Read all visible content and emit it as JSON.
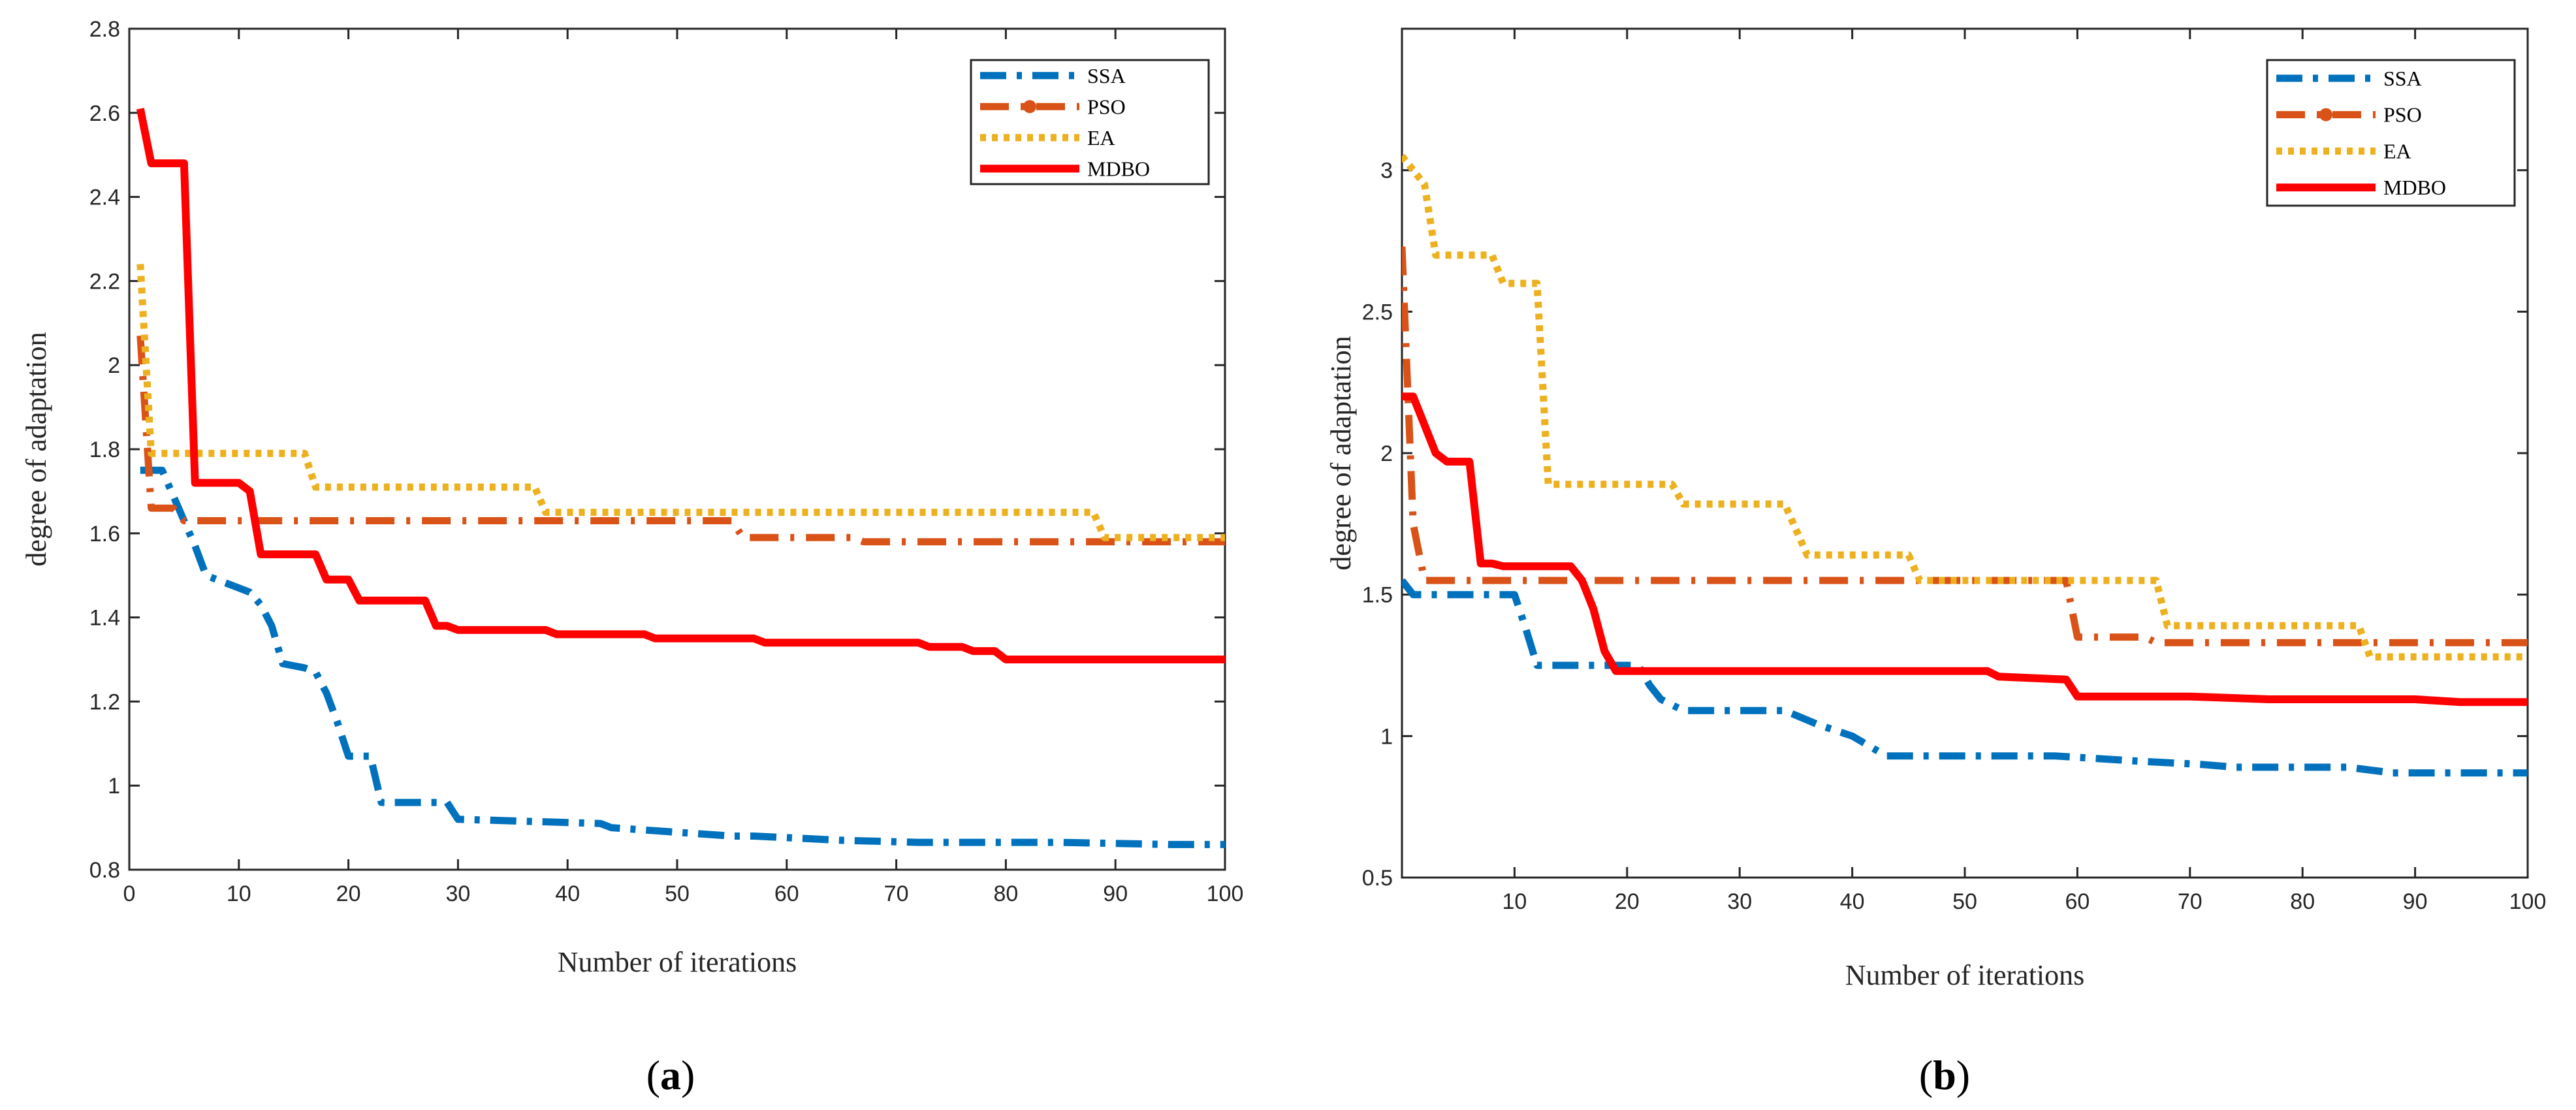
{
  "chart_data": [
    {
      "type": "line",
      "caption": "a",
      "title": "",
      "xlabel": "Number of iterations",
      "ylabel": "degree of adaptation",
      "xlim": [
        0,
        100
      ],
      "ylim": [
        0.8,
        2.8
      ],
      "xticks": [
        0,
        10,
        20,
        30,
        40,
        50,
        60,
        70,
        80,
        90,
        100
      ],
      "yticks": [
        0.8,
        1,
        1.2,
        1.4,
        1.6,
        1.8,
        2,
        2.2,
        2.4,
        2.6,
        2.8
      ],
      "xtick_labels": [
        "0",
        "10",
        "20",
        "30",
        "40",
        "50",
        "60",
        "70",
        "80",
        "90",
        "100"
      ],
      "ytick_labels": [
        "0.8",
        "1",
        "1.2",
        "1.4",
        "1.6",
        "1.8",
        "2",
        "2.2",
        "2.4",
        "2.6",
        "2.8"
      ],
      "legend_position": "top-right",
      "series": [
        {
          "name": "SSA",
          "color": "#0072BD",
          "style": "dash-dot",
          "points": [
            [
              1,
              1.75
            ],
            [
              3,
              1.75
            ],
            [
              5,
              1.63
            ],
            [
              6,
              1.57
            ],
            [
              7,
              1.5
            ],
            [
              9,
              1.48
            ],
            [
              10,
              1.47
            ],
            [
              11,
              1.46
            ],
            [
              12,
              1.43
            ],
            [
              13,
              1.38
            ],
            [
              14,
              1.29
            ],
            [
              16,
              1.28
            ],
            [
              17,
              1.27
            ],
            [
              18,
              1.22
            ],
            [
              19,
              1.15
            ],
            [
              20,
              1.07
            ],
            [
              22,
              1.07
            ],
            [
              23,
              0.96
            ],
            [
              29,
              0.96
            ],
            [
              30,
              0.92
            ],
            [
              43,
              0.91
            ],
            [
              44,
              0.9
            ],
            [
              55,
              0.88
            ],
            [
              57,
              0.88
            ],
            [
              65,
              0.87
            ],
            [
              72,
              0.865
            ],
            [
              85,
              0.865
            ],
            [
              95,
              0.86
            ],
            [
              100,
              0.86
            ]
          ]
        },
        {
          "name": "PSO",
          "color": "#D95319",
          "style": "dash-dot-marker",
          "points": [
            [
              1,
              2.07
            ],
            [
              2,
              1.66
            ],
            [
              4,
              1.66
            ],
            [
              5,
              1.63
            ],
            [
              55,
              1.63
            ],
            [
              56,
              1.59
            ],
            [
              66,
              1.59
            ],
            [
              67,
              1.58
            ],
            [
              100,
              1.58
            ]
          ]
        },
        {
          "name": "EA",
          "color": "#EDB120",
          "style": "dotted",
          "points": [
            [
              1,
              2.24
            ],
            [
              2,
              1.79
            ],
            [
              15,
              1.79
            ],
            [
              16,
              1.79
            ],
            [
              17,
              1.71
            ],
            [
              37,
              1.71
            ],
            [
              38,
              1.65
            ],
            [
              88,
              1.65
            ],
            [
              89,
              1.59
            ],
            [
              100,
              1.59
            ]
          ]
        },
        {
          "name": "MDBO",
          "color": "#FF0000",
          "style": "solid",
          "points": [
            [
              1,
              2.61
            ],
            [
              2,
              2.48
            ],
            [
              5,
              2.48
            ],
            [
              6,
              1.72
            ],
            [
              10,
              1.72
            ],
            [
              11,
              1.7
            ],
            [
              12,
              1.55
            ],
            [
              17,
              1.55
            ],
            [
              18,
              1.49
            ],
            [
              20,
              1.49
            ],
            [
              21,
              1.44
            ],
            [
              27,
              1.44
            ],
            [
              28,
              1.38
            ],
            [
              29,
              1.38
            ],
            [
              30,
              1.37
            ],
            [
              38,
              1.37
            ],
            [
              39,
              1.36
            ],
            [
              47,
              1.36
            ],
            [
              48,
              1.35
            ],
            [
              57,
              1.35
            ],
            [
              58,
              1.34
            ],
            [
              72,
              1.34
            ],
            [
              73,
              1.33
            ],
            [
              76,
              1.33
            ],
            [
              77,
              1.32
            ],
            [
              79,
              1.32
            ],
            [
              80,
              1.3
            ],
            [
              100,
              1.3
            ]
          ]
        }
      ]
    },
    {
      "type": "line",
      "caption": "b",
      "title": "",
      "xlabel": "Number of iterations",
      "ylabel": "degree of adaptation",
      "xlim": [
        0,
        100
      ],
      "ylim": [
        0.5,
        3.5
      ],
      "xticks": [
        10,
        20,
        30,
        40,
        50,
        60,
        70,
        80,
        90,
        100
      ],
      "yticks": [
        0.5,
        1,
        1.5,
        2,
        2.5,
        3
      ],
      "xtick_labels": [
        "10",
        "20",
        "30",
        "40",
        "50",
        "60",
        "70",
        "80",
        "90",
        "100"
      ],
      "ytick_labels": [
        "0.5",
        "1",
        "1.5",
        "2",
        "2.5",
        "3"
      ],
      "legend_position": "top-right",
      "series": [
        {
          "name": "SSA",
          "color": "#0072BD",
          "style": "dash-dot",
          "points": [
            [
              0,
              1.55
            ],
            [
              1,
              1.5
            ],
            [
              10,
              1.5
            ],
            [
              11,
              1.38
            ],
            [
              12,
              1.25
            ],
            [
              21,
              1.25
            ],
            [
              22,
              1.18
            ],
            [
              23,
              1.13
            ],
            [
              25,
              1.09
            ],
            [
              34,
              1.09
            ],
            [
              37,
              1.04
            ],
            [
              40,
              1.0
            ],
            [
              43,
              0.93
            ],
            [
              58,
              0.93
            ],
            [
              66,
              0.91
            ],
            [
              71,
              0.9
            ],
            [
              74,
              0.89
            ],
            [
              84,
              0.89
            ],
            [
              88,
              0.87
            ],
            [
              100,
              0.87
            ]
          ]
        },
        {
          "name": "PSO",
          "color": "#D95319",
          "style": "dash-dot-marker",
          "points": [
            [
              0,
              2.73
            ],
            [
              1,
              1.75
            ],
            [
              2,
              1.55
            ],
            [
              59,
              1.55
            ],
            [
              60,
              1.35
            ],
            [
              66,
              1.35
            ],
            [
              67,
              1.33
            ],
            [
              100,
              1.33
            ]
          ]
        },
        {
          "name": "EA",
          "color": "#EDB120",
          "style": "dotted",
          "points": [
            [
              0,
              3.05
            ],
            [
              2,
              2.95
            ],
            [
              3,
              2.7
            ],
            [
              8,
              2.7
            ],
            [
              9,
              2.6
            ],
            [
              12,
              2.6
            ],
            [
              13,
              1.89
            ],
            [
              24,
              1.89
            ],
            [
              25,
              1.82
            ],
            [
              34,
              1.82
            ],
            [
              36,
              1.64
            ],
            [
              45,
              1.64
            ],
            [
              46,
              1.55
            ],
            [
              67,
              1.55
            ],
            [
              68,
              1.39
            ],
            [
              85,
              1.39
            ],
            [
              86,
              1.28
            ],
            [
              100,
              1.28
            ]
          ]
        },
        {
          "name": "MDBO",
          "color": "#FF0000",
          "style": "solid",
          "points": [
            [
              0,
              2.2
            ],
            [
              1,
              2.2
            ],
            [
              2,
              2.1
            ],
            [
              3,
              2.0
            ],
            [
              4,
              1.97
            ],
            [
              6,
              1.97
            ],
            [
              7,
              1.61
            ],
            [
              8,
              1.61
            ],
            [
              9,
              1.6
            ],
            [
              15,
              1.6
            ],
            [
              16,
              1.55
            ],
            [
              17,
              1.45
            ],
            [
              18,
              1.3
            ],
            [
              19,
              1.23
            ],
            [
              52,
              1.23
            ],
            [
              53,
              1.21
            ],
            [
              59,
              1.2
            ],
            [
              60,
              1.14
            ],
            [
              70,
              1.14
            ],
            [
              77,
              1.13
            ],
            [
              90,
              1.13
            ],
            [
              94,
              1.12
            ],
            [
              100,
              1.12
            ]
          ]
        }
      ]
    }
  ]
}
